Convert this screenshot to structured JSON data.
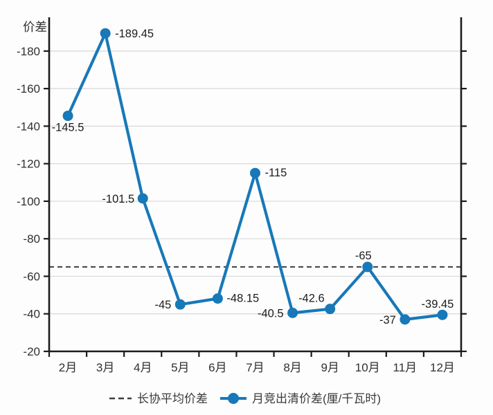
{
  "chart_data": {
    "type": "line",
    "title": "",
    "ylabel": "价差",
    "xlabel": "",
    "categories": [
      "2月",
      "3月",
      "4月",
      "5月",
      "6月",
      "7月",
      "8月",
      "9月",
      "10月",
      "11月",
      "12月"
    ],
    "series": [
      {
        "name": "月竞出清价差(厘/千瓦时)",
        "kind": "line-with-markers",
        "values": [
          -145.5,
          -189.45,
          -101.5,
          -45,
          -48.15,
          -115,
          -40.5,
          -42.6,
          -65,
          -37,
          -39.45
        ],
        "labels": [
          "-145.5",
          "-189.45",
          "-101.5",
          "-45",
          "-48.15",
          "-115",
          "-40.5",
          "-42.6",
          "-65",
          "-37",
          "-39.45"
        ],
        "color": "#1878b8",
        "marker": "circle"
      },
      {
        "name": "长协平均价差",
        "kind": "reference-line",
        "value": -65,
        "style": "dashed",
        "color": "#3d3d3d"
      }
    ],
    "y_ticks": [
      -20,
      -40,
      -60,
      -80,
      -100,
      -120,
      -140,
      -160,
      -180
    ],
    "y_tick_labels": [
      "-20",
      "-40",
      "-60",
      "-80",
      "-100",
      "-120",
      "-140",
      "-160",
      "-180"
    ],
    "ylim": [
      -20,
      -198
    ],
    "y_axis_direction": "negative-values-increase-upward",
    "grid": "horizontal-only",
    "legend_position": "bottom-center",
    "label_offsets": [
      [
        0,
        22,
        "middle"
      ],
      [
        14,
        6,
        "start"
      ],
      [
        -12,
        6,
        "end"
      ],
      [
        -13,
        6,
        "end"
      ],
      [
        13,
        5,
        "start"
      ],
      [
        14,
        5,
        "start"
      ],
      [
        -13,
        6,
        "end"
      ],
      [
        -8,
        -10,
        "end"
      ],
      [
        -6,
        -11,
        "middle"
      ],
      [
        -13,
        6,
        "end"
      ],
      [
        -7,
        -10,
        "middle"
      ]
    ],
    "colors": {
      "background": "#fdfdfd",
      "grid": "#d8d8d8",
      "axis": "#1b1b1b",
      "tick_label": "#303030",
      "data_label": "#1c1c1c",
      "legend_text": "#3a3a3a"
    }
  }
}
